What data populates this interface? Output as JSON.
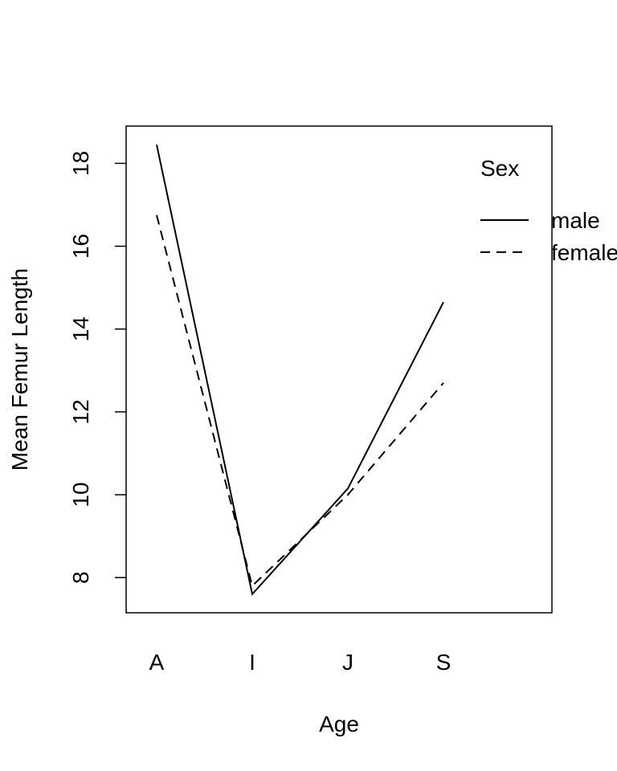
{
  "chart_data": {
    "type": "line",
    "title": "",
    "xlabel": "Age",
    "ylabel": "Mean Femur Length",
    "categories": [
      "A",
      "I",
      "J",
      "S"
    ],
    "yticks": [
      8,
      10,
      12,
      14,
      16,
      18
    ],
    "ylim": [
      7.15,
      18.9
    ],
    "grid": false,
    "legend": {
      "title": "Sex",
      "placement": "top-right",
      "entries": [
        "male",
        "female"
      ]
    },
    "series": [
      {
        "name": "male",
        "line_style": "solid",
        "values": [
          18.45,
          7.6,
          10.15,
          14.65
        ]
      },
      {
        "name": "female",
        "line_style": "dashed",
        "values": [
          16.75,
          7.8,
          10.0,
          12.7
        ]
      }
    ],
    "colors": {
      "line": "#000000",
      "background": "#ffffff"
    }
  }
}
